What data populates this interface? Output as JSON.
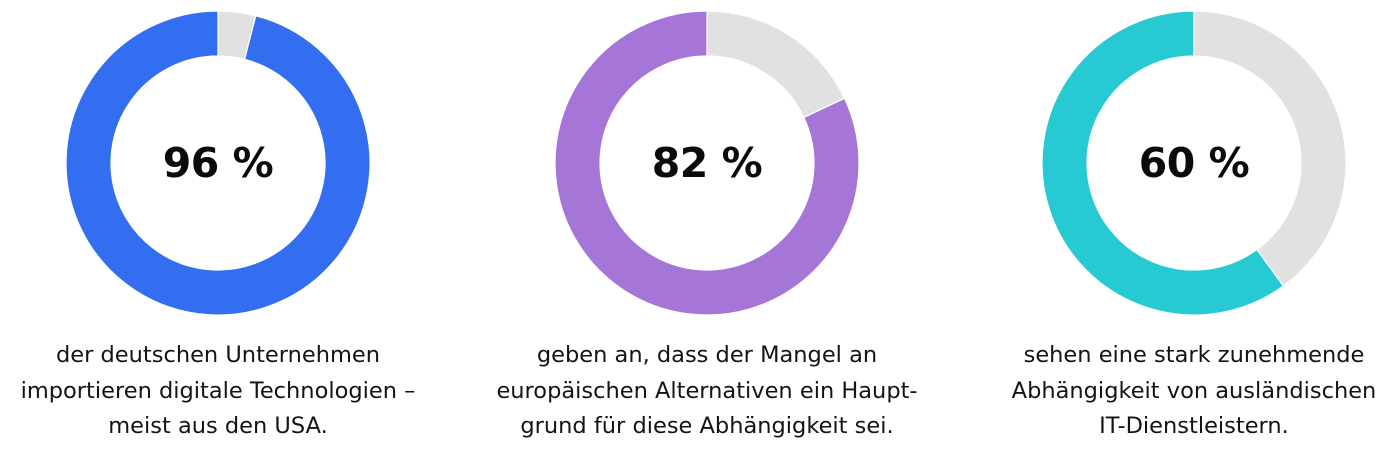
{
  "colors": {
    "remainder": "#e1e1e1",
    "background": "#ffffff",
    "text": "#111111"
  },
  "stats": [
    {
      "value": 96,
      "label": "96 %",
      "color": "#346ef0",
      "caption_lines": [
        "der deutschen Unternehmen",
        "importieren digitale Technologien –",
        "meist aus den USA."
      ]
    },
    {
      "value": 82,
      "label": "82 %",
      "color": "#a675d8",
      "caption_lines": [
        "geben an, dass der Mangel an",
        "europäischen Alternativen ein Haupt-",
        "grund für diese Abhängigkeit sei."
      ]
    },
    {
      "value": 60,
      "label": "60 %",
      "color": "#27c9d2",
      "caption_lines": [
        "sehen eine stark zunehmende",
        "Abhängigkeit von ausländischen",
        "IT-Dienstleistern."
      ]
    }
  ],
  "chart_data": [
    {
      "type": "pie",
      "variant": "donut",
      "title": "",
      "center_label": "96 %",
      "categories": [
        "Anteil",
        "Rest"
      ],
      "values": [
        96,
        4
      ],
      "colors": [
        "#346ef0",
        "#e1e1e1"
      ],
      "caption": "der deutschen Unternehmen importieren digitale Technologien – meist aus den USA."
    },
    {
      "type": "pie",
      "variant": "donut",
      "title": "",
      "center_label": "82 %",
      "categories": [
        "Anteil",
        "Rest"
      ],
      "values": [
        82,
        18
      ],
      "colors": [
        "#a675d8",
        "#e1e1e1"
      ],
      "caption": "geben an, dass der Mangel an europäischen Alternativen ein Hauptgrund für diese Abhängigkeit sei."
    },
    {
      "type": "pie",
      "variant": "donut",
      "title": "",
      "center_label": "60 %",
      "categories": [
        "Anteil",
        "Rest"
      ],
      "values": [
        60,
        40
      ],
      "colors": [
        "#27c9d2",
        "#e1e1e1"
      ],
      "caption": "sehen eine stark zunehmende Abhängigkeit von ausländischen IT-Dienstleistern."
    }
  ]
}
